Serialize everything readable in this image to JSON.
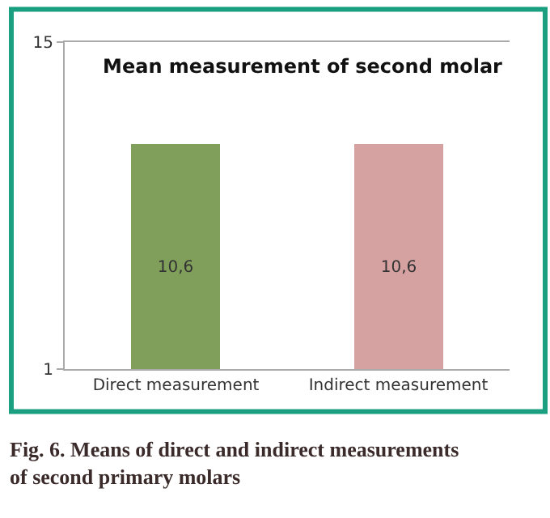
{
  "chart_data": {
    "type": "bar",
    "title": "Mean measurement of second molar",
    "categories": [
      "Direct measurement",
      "Indirect measurement"
    ],
    "values": [
      10.6,
      10.6
    ],
    "colors": [
      "#7f9f5a",
      "#d6a1a1"
    ],
    "value_labels": [
      "10,6",
      "10,6"
    ],
    "ylim": [
      1,
      15
    ],
    "yticks": [
      1,
      15
    ],
    "annotations": [
      "Fig. 6. Means of direct and indirect measurements\nof second primary molars"
    ]
  }
}
